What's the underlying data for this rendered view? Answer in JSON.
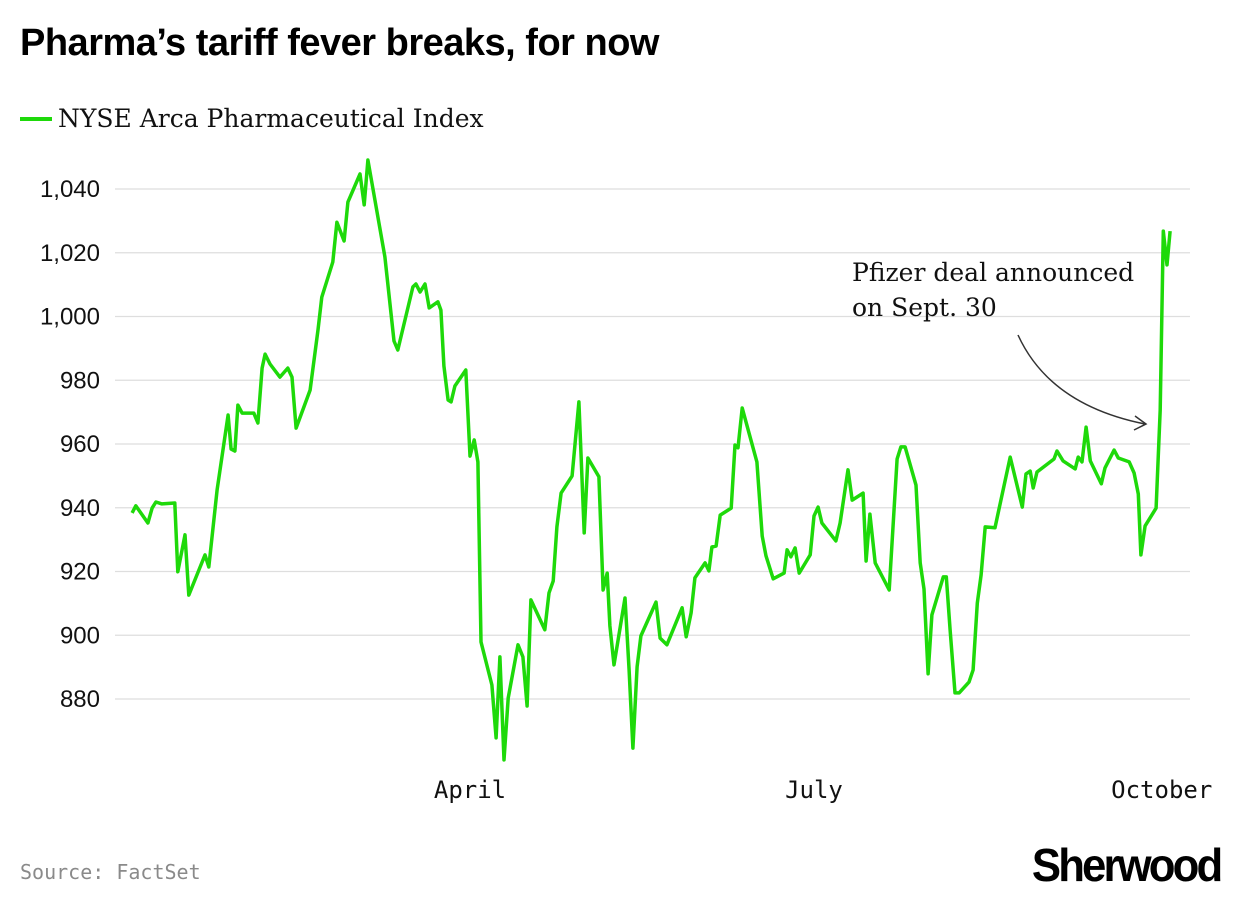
{
  "title": "Pharma’s tariff fever breaks, for now",
  "source": "Source: FactSet",
  "logo": "Sherwood",
  "chart_data": {
    "type": "line",
    "title": "Pharma’s tariff fever breaks, for now",
    "xlabel": "",
    "ylabel": "",
    "x_unit": "day of year (2025)",
    "xlim": [
      1,
      280
    ],
    "ylim": [
      858,
      1052
    ],
    "grid": true,
    "legend_placement": "top-left",
    "y_ticks": [
      880,
      900,
      920,
      940,
      960,
      980,
      1000,
      1020,
      1040
    ],
    "y_tick_labels": [
      "880",
      "900",
      "920",
      "940",
      "960",
      "980",
      "1,000",
      "1,020",
      "1,040"
    ],
    "x_ticks": [
      {
        "label": "April",
        "x": 91
      },
      {
        "label": "July",
        "x": 182
      },
      {
        "label": "October",
        "x": 274
      }
    ],
    "annotation": {
      "lines": [
        "Pfizer deal announced",
        "on Sept. 30"
      ],
      "x": 274,
      "y": 965
    },
    "series": [
      {
        "name": "NYSE Arca Pharmaceutical Index",
        "color": "#1ed90a",
        "points": [
          [
            1.6,
            938.4
          ],
          [
            2.6,
            940.6
          ],
          [
            3.9,
            938.4
          ],
          [
            5.8,
            935.2
          ],
          [
            6.9,
            939.9
          ],
          [
            7.9,
            941.8
          ],
          [
            9.5,
            941.2
          ],
          [
            12.9,
            941.5
          ],
          [
            13.7,
            919.9
          ],
          [
            15.6,
            931.5
          ],
          [
            16.6,
            912.6
          ],
          [
            20.9,
            925.2
          ],
          [
            21.9,
            921.4
          ],
          [
            24.1,
            945.6
          ],
          [
            27.0,
            969.1
          ],
          [
            27.8,
            958.4
          ],
          [
            28.8,
            957.8
          ],
          [
            29.6,
            972.2
          ],
          [
            30.7,
            969.7
          ],
          [
            33.8,
            969.7
          ],
          [
            34.9,
            966.6
          ],
          [
            36.0,
            983.8
          ],
          [
            36.8,
            988.2
          ],
          [
            38.1,
            985.1
          ],
          [
            40.7,
            981.0
          ],
          [
            42.8,
            983.8
          ],
          [
            43.9,
            981.0
          ],
          [
            45.0,
            965.0
          ],
          [
            48.7,
            976.9
          ],
          [
            50.8,
            995.8
          ],
          [
            51.8,
            1006.1
          ],
          [
            54.7,
            1017.1
          ],
          [
            55.8,
            1029.6
          ],
          [
            57.7,
            1023.7
          ],
          [
            58.7,
            1035.9
          ],
          [
            61.9,
            1044.7
          ],
          [
            63.0,
            1035.0
          ],
          [
            64.0,
            1049.1
          ],
          [
            68.5,
            1018.7
          ],
          [
            70.9,
            992.3
          ],
          [
            71.9,
            989.5
          ],
          [
            75.9,
            1009.3
          ],
          [
            76.7,
            1010.2
          ],
          [
            77.8,
            1007.7
          ],
          [
            79.1,
            1010.2
          ],
          [
            80.2,
            1002.7
          ],
          [
            82.5,
            1004.6
          ],
          [
            83.3,
            1002.0
          ],
          [
            84.1,
            984.5
          ],
          [
            85.2,
            973.8
          ],
          [
            86.0,
            973.2
          ],
          [
            87.0,
            978.2
          ],
          [
            89.9,
            983.2
          ],
          [
            91.0,
            956.2
          ],
          [
            92.1,
            961.3
          ],
          [
            93.1,
            954.4
          ],
          [
            93.9,
            897.9
          ],
          [
            96.8,
            884.4
          ],
          [
            97.9,
            867.8
          ],
          [
            98.9,
            893.2
          ],
          [
            100.0,
            860.9
          ],
          [
            101.1,
            880.3
          ],
          [
            103.7,
            897.0
          ],
          [
            105.0,
            893.2
          ],
          [
            106.1,
            877.8
          ],
          [
            107.1,
            911.1
          ],
          [
            110.8,
            901.7
          ],
          [
            111.9,
            913.3
          ],
          [
            113.0,
            917.0
          ],
          [
            114.0,
            934.0
          ],
          [
            115.1,
            944.6
          ],
          [
            118.0,
            950.0
          ],
          [
            119.8,
            973.2
          ],
          [
            121.2,
            932.1
          ],
          [
            122.2,
            955.6
          ],
          [
            125.1,
            949.7
          ],
          [
            126.2,
            914.2
          ],
          [
            127.3,
            919.5
          ],
          [
            128.0,
            902.9
          ],
          [
            129.1,
            890.7
          ],
          [
            132.0,
            911.7
          ],
          [
            133.1,
            889.1
          ],
          [
            134.1,
            864.6
          ],
          [
            135.2,
            890.1
          ],
          [
            136.2,
            899.8
          ],
          [
            140.2,
            910.4
          ],
          [
            141.3,
            899.1
          ],
          [
            143.1,
            897.0
          ],
          [
            147.1,
            908.6
          ],
          [
            148.2,
            899.5
          ],
          [
            149.5,
            907.0
          ],
          [
            150.5,
            918.0
          ],
          [
            153.2,
            922.7
          ],
          [
            154.2,
            920.2
          ],
          [
            155.0,
            927.7
          ],
          [
            156.1,
            928.0
          ],
          [
            157.2,
            937.7
          ],
          [
            160.1,
            939.9
          ],
          [
            161.1,
            959.7
          ],
          [
            161.9,
            958.8
          ],
          [
            163.0,
            971.3
          ],
          [
            166.9,
            954.4
          ],
          [
            168.3,
            931.1
          ],
          [
            169.3,
            924.9
          ],
          [
            171.2,
            917.7
          ],
          [
            174.1,
            919.5
          ],
          [
            174.9,
            926.8
          ],
          [
            175.9,
            924.6
          ],
          [
            177.0,
            927.4
          ],
          [
            178.1,
            919.5
          ],
          [
            181.0,
            925.2
          ],
          [
            182.0,
            937.4
          ],
          [
            183.1,
            940.2
          ],
          [
            184.1,
            935.2
          ],
          [
            187.8,
            929.6
          ],
          [
            188.9,
            935.2
          ],
          [
            191.0,
            951.9
          ],
          [
            192.1,
            942.4
          ],
          [
            195.0,
            944.6
          ],
          [
            195.8,
            923.3
          ],
          [
            196.8,
            938.0
          ],
          [
            198.2,
            922.7
          ],
          [
            201.9,
            914.2
          ],
          [
            204.0,
            955.3
          ],
          [
            205.0,
            959.1
          ],
          [
            206.1,
            959.1
          ],
          [
            209.0,
            947.1
          ],
          [
            210.1,
            922.7
          ],
          [
            211.1,
            914.5
          ],
          [
            212.2,
            887.9
          ],
          [
            213.2,
            906.4
          ],
          [
            216.2,
            918.3
          ],
          [
            217.0,
            918.3
          ],
          [
            218.0,
            901.7
          ],
          [
            219.3,
            881.9
          ],
          [
            220.4,
            881.9
          ],
          [
            223.0,
            885.3
          ],
          [
            224.1,
            889.1
          ],
          [
            225.2,
            910.1
          ],
          [
            226.2,
            918.9
          ],
          [
            227.3,
            934.0
          ],
          [
            229.9,
            933.7
          ],
          [
            231.0,
            939.9
          ],
          [
            233.9,
            955.9
          ],
          [
            237.1,
            940.2
          ],
          [
            238.1,
            950.6
          ],
          [
            239.2,
            951.5
          ],
          [
            240.0,
            946.2
          ],
          [
            241.0,
            951.2
          ],
          [
            245.5,
            955.3
          ],
          [
            246.3,
            957.8
          ],
          [
            247.9,
            954.7
          ],
          [
            251.1,
            952.2
          ],
          [
            251.9,
            955.9
          ],
          [
            252.9,
            954.4
          ],
          [
            254.0,
            965.3
          ],
          [
            255.1,
            954.7
          ],
          [
            258.0,
            947.5
          ],
          [
            259.0,
            952.5
          ],
          [
            261.4,
            958.1
          ],
          [
            262.5,
            955.6
          ],
          [
            265.4,
            954.4
          ],
          [
            266.7,
            950.9
          ],
          [
            267.8,
            944.3
          ],
          [
            268.5,
            925.2
          ],
          [
            269.6,
            934.3
          ],
          [
            272.5,
            939.9
          ],
          [
            273.6,
            970.7
          ],
          [
            274.4,
            1026.8
          ],
          [
            275.4,
            1016.2
          ],
          [
            276.2,
            1026.8
          ]
        ]
      }
    ]
  }
}
